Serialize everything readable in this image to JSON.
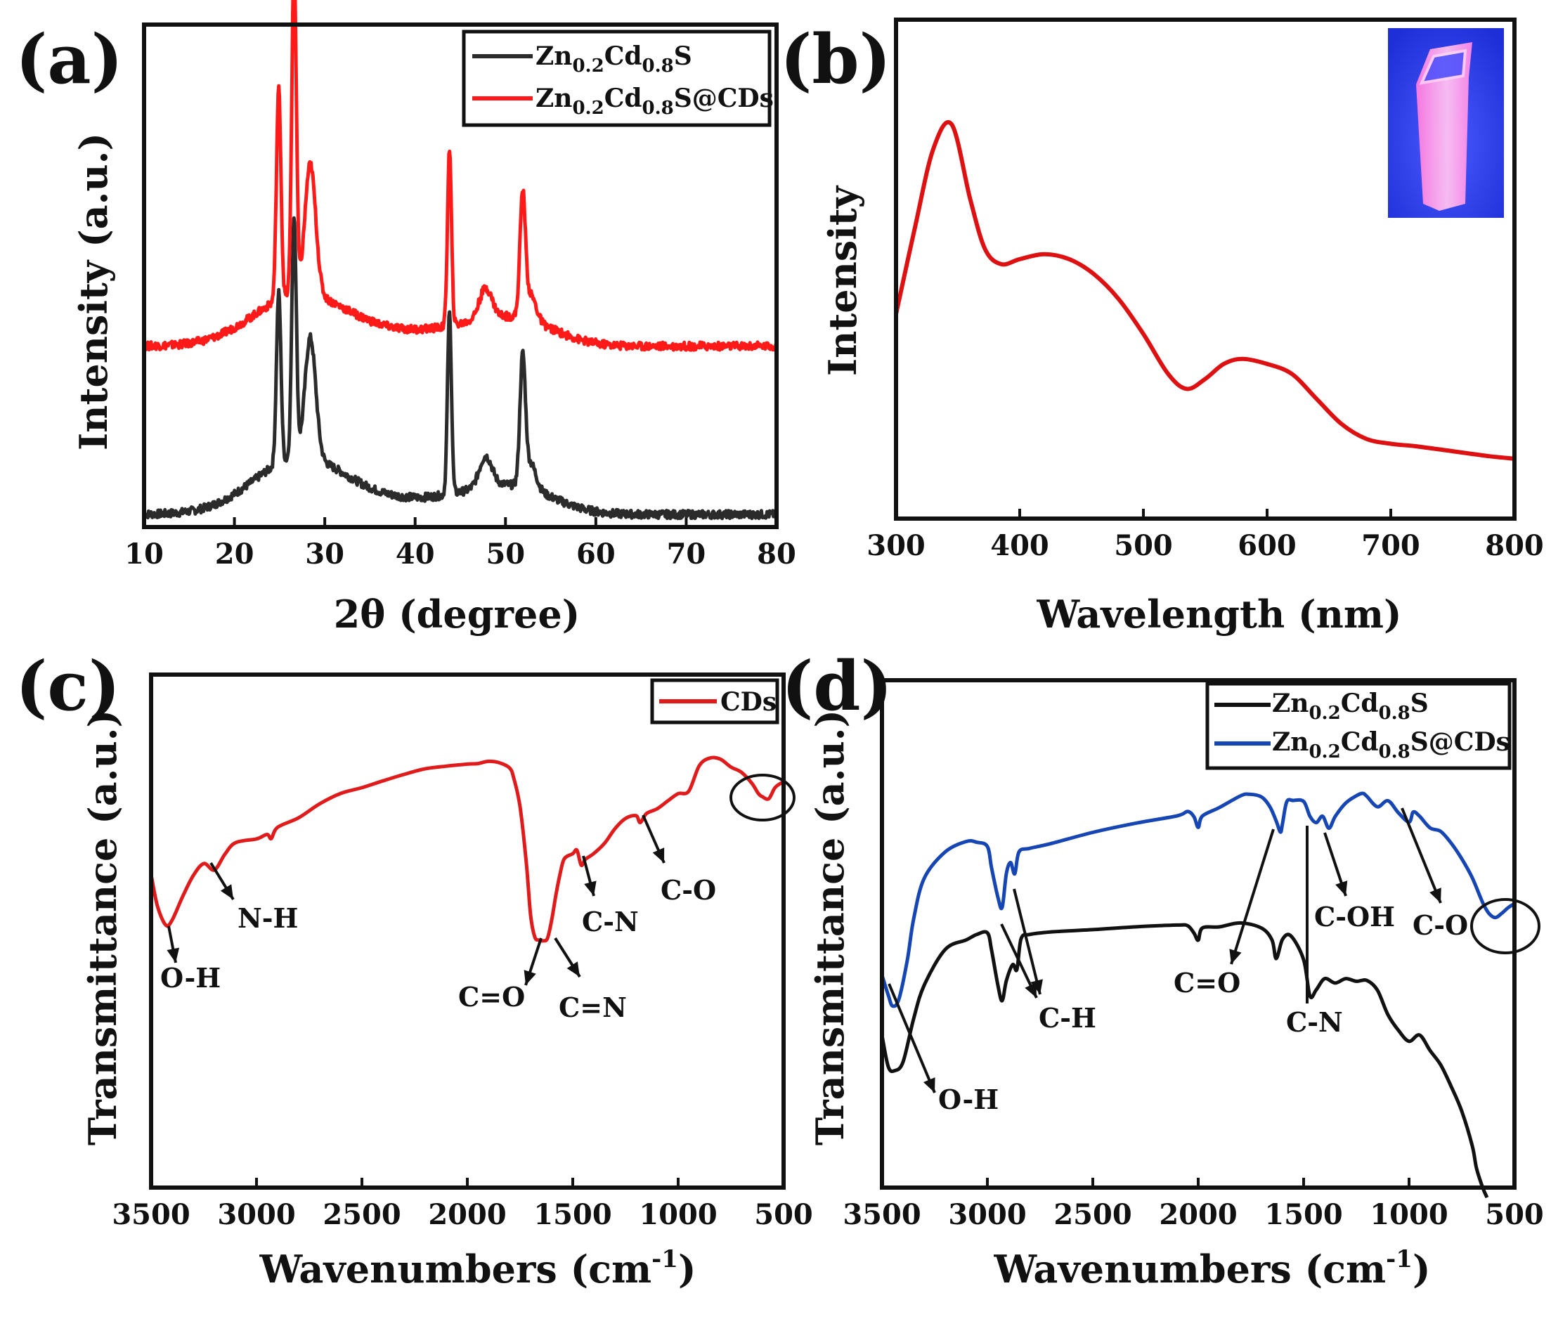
{
  "chart_data": [
    {
      "id": "a",
      "type": "line",
      "panel_label": "(a)",
      "xlabel": "2θ (degree)",
      "ylabel": "Intensity (a.u.)",
      "xlim": [
        10,
        80
      ],
      "ylim": [
        0,
        100
      ],
      "xticks": [
        "10",
        "20",
        "30",
        "40",
        "50",
        "60",
        "70",
        "80"
      ],
      "series": [
        {
          "name": "Zn0.2Cd0.8S",
          "name_parts": [
            "Zn",
            "0.2",
            "Cd",
            "0.8",
            "S",
            ""
          ],
          "color": "#2b2b2b",
          "baseline": 2.5,
          "peaks": [
            [
              24.9,
              34,
              0.25
            ],
            [
              26.6,
              48,
              0.25
            ],
            [
              28.4,
              24,
              0.6
            ],
            [
              43.8,
              36,
              0.22
            ],
            [
              47.8,
              6,
              0.7
            ],
            [
              51.9,
              25,
              0.3
            ],
            [
              52.8,
              5,
              0.6
            ]
          ],
          "bumps": [
            [
              27,
              10,
              5
            ],
            [
              36,
              2.5,
              8
            ],
            [
              48,
              3,
              5
            ],
            [
              52,
              3,
              4
            ]
          ]
        },
        {
          "name": "Zn0.2Cd0.8S@CDs",
          "name_parts": [
            "Zn",
            "0.2",
            "Cd",
            "0.8",
            "S@CDs",
            ""
          ],
          "color": "#ff1a1a",
          "baseline": 36,
          "peaks": [
            [
              24.9,
              42,
              0.25
            ],
            [
              26.6,
              66,
              0.25
            ],
            [
              28.4,
              26,
              0.6
            ],
            [
              43.8,
              35,
              0.22
            ],
            [
              47.8,
              6,
              0.7
            ],
            [
              51.9,
              24,
              0.3
            ],
            [
              52.8,
              5,
              0.6
            ]
          ],
          "bumps": [
            [
              27,
              9,
              5
            ],
            [
              36,
              2.5,
              8
            ],
            [
              48,
              3,
              5
            ],
            [
              52,
              3,
              4
            ]
          ]
        }
      ]
    },
    {
      "id": "b",
      "type": "line",
      "panel_label": "(b)",
      "xlabel": "Wavelength (nm)",
      "ylabel": "Intensity",
      "xlim": [
        300,
        800
      ],
      "ylim": [
        0,
        100
      ],
      "xticks": [
        "300",
        "400",
        "500",
        "600",
        "700",
        "800"
      ],
      "series": [
        {
          "name": "Intensity",
          "color": "#dd1111",
          "x": [
            300,
            315,
            330,
            345,
            360,
            372,
            385,
            400,
            420,
            440,
            460,
            480,
            500,
            520,
            535,
            550,
            565,
            580,
            600,
            620,
            640,
            660,
            680,
            700,
            720,
            750,
            780,
            800
          ],
          "y": [
            41,
            58,
            74,
            79,
            64,
            54,
            51,
            52,
            53,
            52,
            49,
            44,
            37,
            29,
            26,
            28,
            31,
            32,
            31,
            29,
            24,
            19,
            16,
            15,
            14.5,
            13.5,
            12.5,
            12
          ]
        }
      ]
    },
    {
      "id": "c",
      "type": "line",
      "panel_label": "(c)",
      "xlabel": "Wavenumbers (cm",
      "xlabel_sup": "-1",
      "xlabel_end": ")",
      "ylabel": "Transmittance (a.u.)",
      "xlim": [
        3500,
        500
      ],
      "ylim": [
        0,
        100
      ],
      "xticks": [
        "3500",
        "3000",
        "2500",
        "2000",
        "1500",
        "1000",
        "500"
      ],
      "series": [
        {
          "name": "CDs",
          "color": "#e01b1b",
          "x": [
            3500,
            3470,
            3430,
            3400,
            3350,
            3300,
            3250,
            3200,
            3150,
            3100,
            3000,
            2950,
            2930,
            2900,
            2800,
            2700,
            2600,
            2500,
            2400,
            2300,
            2200,
            2100,
            2000,
            1950,
            1900,
            1850,
            1800,
            1780,
            1750,
            1720,
            1700,
            1680,
            1660,
            1640,
            1620,
            1600,
            1580,
            1560,
            1540,
            1500,
            1480,
            1460,
            1440,
            1400,
            1350,
            1300,
            1250,
            1200,
            1180,
            1150,
            1100,
            1050,
            1000,
            950,
            900,
            850,
            800,
            750,
            700,
            650,
            620,
            600,
            570,
            540,
            500
          ],
          "y": [
            61,
            55,
            51,
            52,
            57,
            61,
            63,
            62,
            65,
            67,
            68,
            69,
            68,
            70,
            72,
            75,
            77,
            78,
            79.5,
            80.5,
            81.5,
            82,
            82.5,
            82.8,
            83,
            82.8,
            82,
            80,
            74,
            63,
            53,
            49,
            48,
            48,
            48.5,
            52,
            57,
            61,
            64,
            65,
            66,
            63,
            64,
            65,
            67,
            70,
            72,
            72.5,
            71,
            73,
            74,
            75.5,
            77,
            77.5,
            82,
            83.5,
            83.5,
            82,
            81,
            79,
            77,
            76,
            76,
            78,
            79
          ]
        }
      ],
      "annotations": [
        {
          "text": "O-H"
        },
        {
          "text": "N-H"
        },
        {
          "text": "C=O"
        },
        {
          "text": "C=N"
        },
        {
          "text": "C-N"
        },
        {
          "text": "C-O"
        }
      ]
    },
    {
      "id": "d",
      "type": "line",
      "panel_label": "(d)",
      "xlabel": "Wavenumbers (cm",
      "xlabel_sup": "-1",
      "xlabel_end": ")",
      "ylabel": "Transmittance (a.u.)",
      "xlim": [
        3500,
        500
      ],
      "ylim": [
        0,
        100
      ],
      "xticks": [
        "3500",
        "3000",
        "2500",
        "2000",
        "1500",
        "1000",
        "500"
      ],
      "series": [
        {
          "name": "Zn0.2Cd0.8S",
          "name_parts": [
            "Zn",
            "0.2",
            "Cd",
            "0.8",
            "S",
            ""
          ],
          "color": "#111111",
          "x": [
            3500,
            3470,
            3440,
            3400,
            3350,
            3300,
            3200,
            3100,
            3050,
            3000,
            2980,
            2950,
            2930,
            2910,
            2880,
            2860,
            2840,
            2800,
            2700,
            2500,
            2300,
            2100,
            2050,
            2020,
            2000,
            1980,
            1900,
            1800,
            1700,
            1650,
            1630,
            1600,
            1560,
            1500,
            1470,
            1440,
            1400,
            1350,
            1300,
            1250,
            1200,
            1150,
            1100,
            1050,
            1000,
            950,
            900,
            850,
            800,
            750,
            700,
            680,
            650,
            630
          ],
          "y": [
            30,
            24,
            23,
            25,
            33,
            40,
            47,
            49,
            50,
            50,
            47,
            40,
            37,
            41,
            44,
            43,
            49,
            50,
            50.5,
            51,
            51.5,
            51.5,
            51.8,
            50,
            49,
            51,
            51.5,
            52,
            51,
            49,
            45,
            49,
            49.5,
            45,
            38,
            39,
            41,
            40.5,
            41,
            40.5,
            41,
            39,
            34,
            31,
            29,
            30,
            27,
            24,
            20,
            15,
            8,
            4,
            0,
            -2
          ]
        },
        {
          "name": "Zn0.2Cd0.8S@CDs",
          "name_parts": [
            "Zn",
            "0.2",
            "Cd",
            "0.8",
            "S@CDs",
            ""
          ],
          "color": "#1646b4",
          "x": [
            3500,
            3470,
            3450,
            3420,
            3380,
            3350,
            3300,
            3200,
            3100,
            3050,
            3000,
            2980,
            2950,
            2930,
            2910,
            2890,
            2870,
            2850,
            2800,
            2700,
            2500,
            2300,
            2100,
            2050,
            2020,
            2000,
            1980,
            1900,
            1800,
            1760,
            1700,
            1660,
            1630,
            1610,
            1600,
            1580,
            1550,
            1500,
            1470,
            1440,
            1410,
            1380,
            1350,
            1300,
            1250,
            1220,
            1200,
            1150,
            1100,
            1050,
            1000,
            980,
            950,
            900,
            850,
            800,
            750,
            700,
            650,
            620,
            590,
            560,
            530,
            500
          ],
          "y": [
            42,
            38,
            36,
            37,
            45,
            53,
            61,
            66,
            68,
            68,
            67,
            63,
            57,
            55,
            62,
            64,
            62,
            66,
            67,
            68,
            70,
            72,
            73.5,
            74,
            73,
            71,
            73,
            75,
            77,
            77.5,
            77,
            75,
            72,
            70,
            72,
            76,
            76.5,
            76,
            73,
            72,
            73,
            71,
            73,
            76,
            77,
            77.5,
            77,
            75,
            76,
            74,
            72,
            74,
            73,
            71,
            70,
            68,
            65,
            61,
            56,
            54,
            53,
            54,
            55,
            56
          ]
        }
      ],
      "annotations": [
        {
          "text": "O-H"
        },
        {
          "text": "C-H"
        },
        {
          "text": "C=O"
        },
        {
          "text": "C-N"
        },
        {
          "text": "C-OH"
        },
        {
          "text": "C-O"
        }
      ]
    }
  ]
}
